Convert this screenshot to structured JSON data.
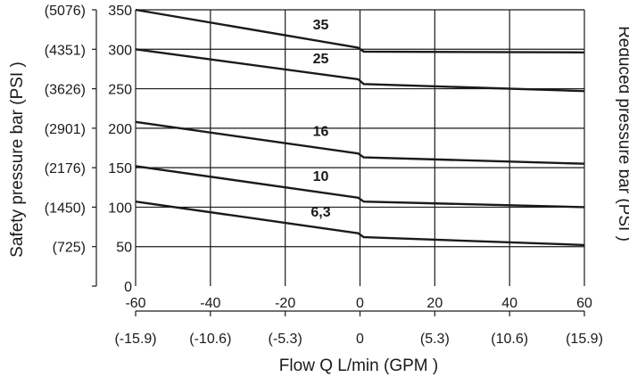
{
  "chart_data": {
    "type": "line",
    "xlabel": "Flow Q L/min (GPM )",
    "ylabel_left": "Safety pressure bar (PSI )",
    "ylabel_right": "Reduced pressure bar (PSI )",
    "xlim": [
      -60,
      60
    ],
    "ylim": [
      0,
      350
    ],
    "grid": true,
    "x_ticks": [
      -60,
      -40,
      -20,
      0,
      20,
      40,
      60
    ],
    "x_tick_labels": [
      "-60",
      "-40",
      "-20",
      "0",
      "20",
      "40",
      "60"
    ],
    "x_tick_labels_gpm": [
      "(-15.9)",
      "(-10.6)",
      "(-5.3)",
      "0",
      "(5.3)",
      "(10.6)",
      "(15.9)"
    ],
    "y_ticks": [
      0,
      50,
      100,
      150,
      200,
      250,
      300,
      350
    ],
    "y_tick_labels": [
      "0",
      "50",
      "100",
      "150",
      "200",
      "250",
      "300",
      "350"
    ],
    "y_tick_labels_psi": [
      "",
      "(725)",
      "(1450)",
      "(2176)",
      "(2901)",
      "(3626)",
      "(4351)",
      "(5076)"
    ],
    "series": [
      {
        "name": "35",
        "points": [
          [
            -60,
            350
          ],
          [
            -0.5,
            302
          ],
          [
            1,
            297
          ],
          [
            60,
            296
          ]
        ],
        "label_at": [
          -10.5,
          325
        ]
      },
      {
        "name": "25",
        "points": [
          [
            -60,
            300
          ],
          [
            -0.5,
            262
          ],
          [
            1,
            256
          ],
          [
            60,
            247
          ]
        ],
        "label_at": [
          -10.5,
          282
        ]
      },
      {
        "name": "16",
        "points": [
          [
            -60,
            208
          ],
          [
            -0.5,
            168
          ],
          [
            1,
            163
          ],
          [
            60,
            155
          ]
        ],
        "label_at": [
          -10.5,
          190
        ]
      },
      {
        "name": "10",
        "points": [
          [
            -60,
            152
          ],
          [
            -0.5,
            112
          ],
          [
            1,
            107
          ],
          [
            60,
            100
          ]
        ],
        "label_at": [
          -10.5,
          133
        ]
      },
      {
        "name": "6,3",
        "points": [
          [
            -60,
            107
          ],
          [
            -0.5,
            67
          ],
          [
            1,
            62
          ],
          [
            60,
            52
          ]
        ],
        "label_at": [
          -10.5,
          88
        ]
      }
    ]
  }
}
